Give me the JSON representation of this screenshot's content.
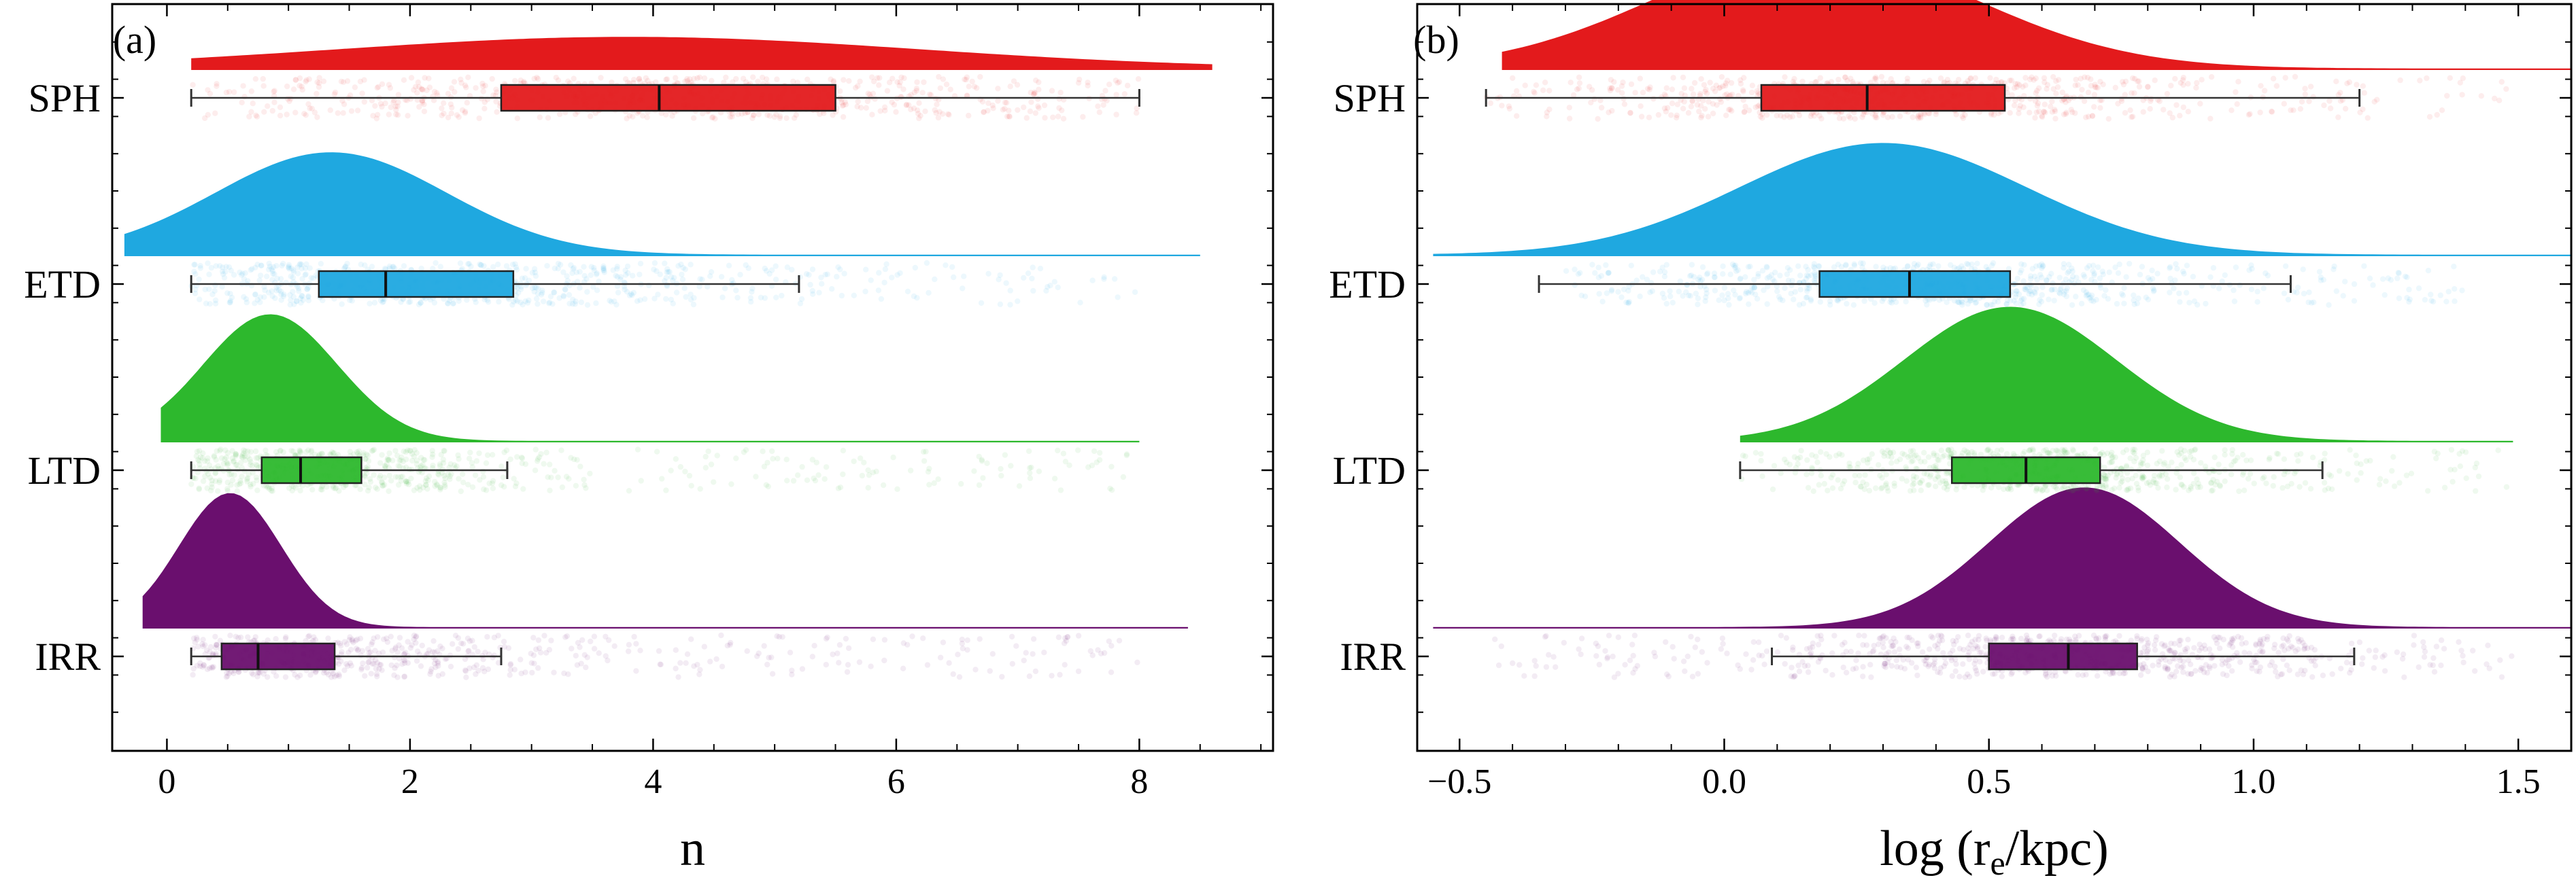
{
  "chart_data": [
    {
      "type": "raincloud",
      "panel_label": "(a)",
      "xlabel": "n",
      "xlim": [
        -0.45,
        9.1
      ],
      "xticks": [
        0,
        2,
        4,
        6,
        8
      ],
      "xtick_labels": [
        "0",
        "2",
        "4",
        "6",
        "8"
      ],
      "minor_xtick_step": 0.5,
      "categories": [
        "SPH",
        "ETD",
        "LTD",
        "IRR"
      ],
      "series": [
        {
          "name": "SPH",
          "color": "#e31a1c",
          "whisker_low": 0.2,
          "q1": 2.75,
          "median": 4.05,
          "q3": 5.5,
          "whisker_high": 8.0,
          "density_mean": 3.8,
          "density_sd": 2.4,
          "density_height": 0.17,
          "density_range": [
            0.2,
            8.6
          ],
          "scatter_range": [
            0.2,
            8.0
          ],
          "scatter_center": 4.0,
          "scatter_sd": 2.2
        },
        {
          "name": "ETD",
          "color": "#1fa8e0",
          "whisker_low": 0.2,
          "q1": 1.25,
          "median": 1.8,
          "q3": 2.85,
          "whisker_high": 5.2,
          "density_mean": 1.35,
          "density_sd": 0.95,
          "density_height": 0.55,
          "density_range": [
            -0.35,
            8.5
          ],
          "scatter_range": [
            0.2,
            8.0
          ],
          "scatter_center": 1.8,
          "scatter_sd": 1.5
        },
        {
          "name": "LTD",
          "color": "#2db82d",
          "whisker_low": 0.2,
          "q1": 0.78,
          "median": 1.1,
          "q3": 1.6,
          "whisker_high": 2.8,
          "density_mean": 0.85,
          "density_sd": 0.55,
          "density_height": 0.68,
          "density_range": [
            -0.05,
            8.0
          ],
          "scatter_range": [
            0.2,
            8.0
          ],
          "scatter_center": 1.1,
          "scatter_sd": 0.9
        },
        {
          "name": "IRR",
          "color": "#6a0f6e",
          "whisker_low": 0.2,
          "q1": 0.45,
          "median": 0.75,
          "q3": 1.38,
          "whisker_high": 2.75,
          "density_mean": 0.52,
          "density_sd": 0.42,
          "density_height": 0.72,
          "density_range": [
            -0.2,
            8.4
          ],
          "scatter_range": [
            0.2,
            8.0
          ],
          "scatter_center": 0.8,
          "scatter_sd": 1.4
        }
      ]
    },
    {
      "type": "raincloud",
      "panel_label": "(b)",
      "xlabel": "log (r",
      "xlabel_sub": "e",
      "xlabel_tail": "/kpc)",
      "xlim": [
        -0.58,
        1.6
      ],
      "xticks": [
        -0.5,
        0.0,
        0.5,
        1.0,
        1.5
      ],
      "xtick_labels": [
        "−0.5",
        "0.0",
        "0.5",
        "1.0",
        "1.5"
      ],
      "minor_xtick_step": 0.1,
      "categories": [
        "SPH",
        "ETD",
        "LTD",
        "IRR"
      ],
      "series": [
        {
          "name": "SPH",
          "color": "#e31a1c",
          "whisker_low": -0.45,
          "q1": 0.07,
          "median": 0.27,
          "q3": 0.53,
          "whisker_high": 1.2,
          "density_mean": 0.17,
          "density_sd": 0.3,
          "density_height": 0.62,
          "density_range": [
            -0.42,
            1.6
          ],
          "scatter_range": [
            -0.45,
            1.48
          ],
          "scatter_center": 0.28,
          "scatter_sd": 0.33
        },
        {
          "name": "ETD",
          "color": "#1fa8e0",
          "whisker_low": -0.35,
          "q1": 0.18,
          "median": 0.35,
          "q3": 0.54,
          "whisker_high": 1.07,
          "density_mean": 0.3,
          "density_sd": 0.27,
          "density_height": 0.6,
          "density_range": [
            -0.55,
            1.6
          ],
          "scatter_range": [
            -0.3,
            1.4
          ],
          "scatter_center": 0.36,
          "scatter_sd": 0.28
        },
        {
          "name": "LTD",
          "color": "#2db82d",
          "whisker_low": 0.03,
          "q1": 0.43,
          "median": 0.57,
          "q3": 0.71,
          "whisker_high": 1.13,
          "density_mean": 0.54,
          "density_sd": 0.2,
          "density_height": 0.72,
          "density_range": [
            0.03,
            1.49
          ],
          "scatter_range": [
            0.03,
            1.49
          ],
          "scatter_center": 0.57,
          "scatter_sd": 0.22
        },
        {
          "name": "IRR",
          "color": "#6a0f6e",
          "whisker_low": 0.09,
          "q1": 0.5,
          "median": 0.65,
          "q3": 0.78,
          "whisker_high": 1.19,
          "density_mean": 0.68,
          "density_sd": 0.18,
          "density_height": 0.75,
          "density_range": [
            -0.55,
            1.6
          ],
          "scatter_range": [
            -0.45,
            1.5
          ],
          "scatter_center": 0.66,
          "scatter_sd": 0.28
        }
      ]
    }
  ]
}
